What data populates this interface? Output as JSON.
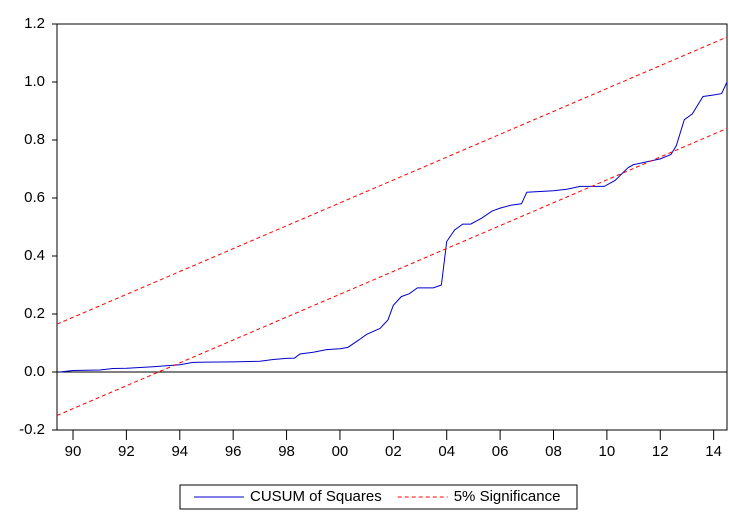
{
  "chart_data": {
    "type": "line",
    "xlim": [
      1989.4,
      2014.5
    ],
    "ylim": [
      -0.2,
      1.2
    ],
    "yticks": [
      -0.2,
      0.2,
      0.4,
      0.6,
      0.8,
      1.2,
      {
        "value": 1.0,
        "label": "1.0"
      },
      {
        "value": 0.0,
        "label": "0.0"
      }
    ],
    "xticks": [
      {
        "value": 1990,
        "label": "90"
      },
      {
        "value": 1992,
        "label": "92"
      },
      {
        "value": 1994,
        "label": "94"
      },
      {
        "value": 1996,
        "label": "96"
      },
      {
        "value": 1998,
        "label": "98"
      },
      {
        "value": 2000,
        "label": "00"
      },
      {
        "value": 2002,
        "label": "02"
      },
      {
        "value": 2004,
        "label": "04"
      },
      {
        "value": 2006,
        "label": "06"
      },
      {
        "value": 2008,
        "label": "08"
      },
      {
        "value": 2010,
        "label": "10"
      },
      {
        "value": 2012,
        "label": "12"
      },
      {
        "value": 2014,
        "label": "14"
      }
    ],
    "series": [
      {
        "name": "CUSUM of Squares",
        "color": "#0000cc",
        "dash": false,
        "x": [
          1989.5,
          1990,
          1991,
          1991.5,
          1992,
          1993,
          1994,
          1994.5,
          1995,
          1996,
          1997,
          1997.5,
          1998,
          1998.3,
          1998.5,
          1999,
          1999.5,
          2000,
          2000.3,
          2000.7,
          2001,
          2001.5,
          2001.8,
          2002,
          2002.3,
          2002.6,
          2002.9,
          2003.5,
          2003.8,
          2004,
          2004.3,
          2004.6,
          2004.9,
          2005.3,
          2005.7,
          2006,
          2006.4,
          2006.8,
          2007,
          2008,
          2008.5,
          2009,
          2009.9,
          2010.3,
          2010.8,
          2011,
          2011.5,
          2012,
          2012.4,
          2012.6,
          2012.9,
          2013.2,
          2013.6,
          2014,
          2014.3,
          2014.5
        ],
        "values": [
          0,
          0.005,
          0.007,
          0.012,
          0.013,
          0.018,
          0.025,
          0.033,
          0.034,
          0.035,
          0.037,
          0.043,
          0.047,
          0.048,
          0.062,
          0.068,
          0.077,
          0.08,
          0.085,
          0.11,
          0.13,
          0.15,
          0.18,
          0.23,
          0.26,
          0.27,
          0.29,
          0.29,
          0.3,
          0.45,
          0.49,
          0.51,
          0.51,
          0.53,
          0.555,
          0.565,
          0.575,
          0.58,
          0.62,
          0.625,
          0.63,
          0.64,
          0.64,
          0.66,
          0.705,
          0.715,
          0.725,
          0.735,
          0.75,
          0.78,
          0.87,
          0.89,
          0.95,
          0.955,
          0.96,
          1.0
        ]
      },
      {
        "name": "5% Significance",
        "color": "#ff0000",
        "dash": true,
        "x": [
          1989.4,
          2014.5
        ],
        "values": [
          0.165,
          1.155
        ]
      },
      {
        "name": null,
        "color": "#ff0000",
        "dash": true,
        "x": [
          1989.4,
          2014.5
        ],
        "values": [
          -0.15,
          0.84
        ]
      }
    ],
    "legend": "bottom"
  }
}
